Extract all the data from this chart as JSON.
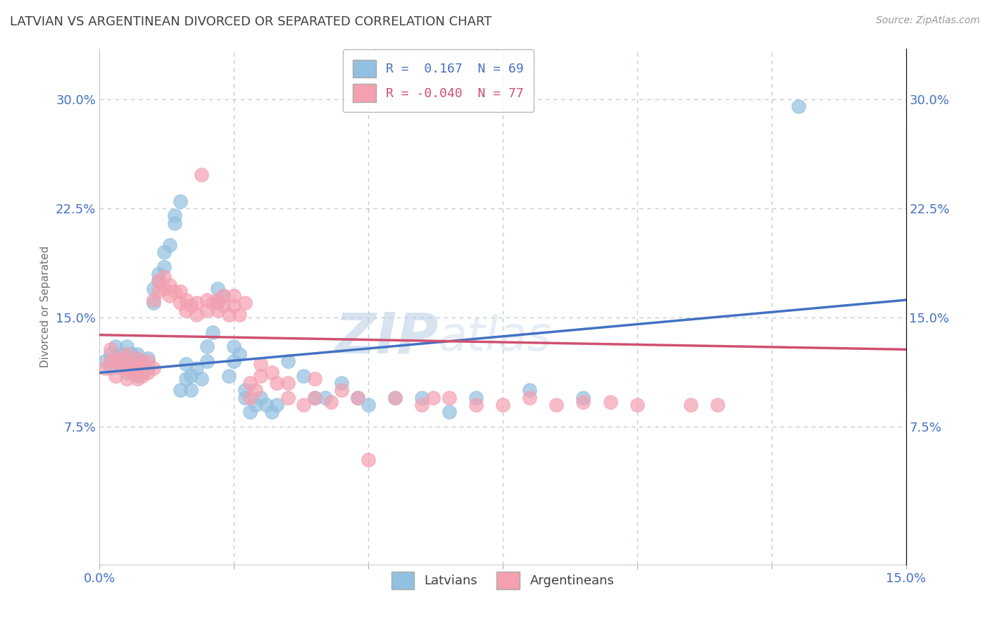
{
  "title": "LATVIAN VS ARGENTINEAN DIVORCED OR SEPARATED CORRELATION CHART",
  "source_text": "Source: ZipAtlas.com",
  "ylabel": "Divorced or Separated",
  "xlabel": "",
  "xlim": [
    0.0,
    0.15
  ],
  "ylim": [
    -0.02,
    0.335
  ],
  "xticks": [
    0.0,
    0.025,
    0.05,
    0.075,
    0.1,
    0.125,
    0.15
  ],
  "xticklabels": [
    "0.0%",
    "",
    "",
    "",
    "",
    "",
    "15.0%"
  ],
  "yticks": [
    0.075,
    0.15,
    0.225,
    0.3
  ],
  "yticklabels": [
    "7.5%",
    "15.0%",
    "22.5%",
    "30.0%"
  ],
  "latvian_color": "#92c0e0",
  "argentinean_color": "#f4a0b0",
  "latvian_line_color": "#4472c4",
  "argentinean_line_color": "#d05070",
  "R_latvian": 0.167,
  "N_latvian": 69,
  "R_argentinean": -0.04,
  "N_argentinean": 77,
  "watermark_zip": "ZIP",
  "watermark_atlas": "atlas",
  "background_color": "#ffffff",
  "grid_color": "#b8c8d8",
  "title_color": "#404040",
  "axis_label_color": "#4472c4",
  "latvian_points": [
    [
      0.001,
      0.12
    ],
    [
      0.002,
      0.115
    ],
    [
      0.002,
      0.125
    ],
    [
      0.003,
      0.12
    ],
    [
      0.003,
      0.13
    ],
    [
      0.004,
      0.118
    ],
    [
      0.004,
      0.125
    ],
    [
      0.005,
      0.112
    ],
    [
      0.005,
      0.12
    ],
    [
      0.005,
      0.13
    ],
    [
      0.006,
      0.115
    ],
    [
      0.006,
      0.12
    ],
    [
      0.006,
      0.125
    ],
    [
      0.007,
      0.11
    ],
    [
      0.007,
      0.118
    ],
    [
      0.007,
      0.125
    ],
    [
      0.008,
      0.112
    ],
    [
      0.008,
      0.12
    ],
    [
      0.009,
      0.115
    ],
    [
      0.009,
      0.122
    ],
    [
      0.01,
      0.16
    ],
    [
      0.01,
      0.17
    ],
    [
      0.011,
      0.175
    ],
    [
      0.011,
      0.18
    ],
    [
      0.012,
      0.185
    ],
    [
      0.012,
      0.195
    ],
    [
      0.013,
      0.2
    ],
    [
      0.014,
      0.215
    ],
    [
      0.014,
      0.22
    ],
    [
      0.015,
      0.23
    ],
    [
      0.015,
      0.1
    ],
    [
      0.016,
      0.108
    ],
    [
      0.016,
      0.118
    ],
    [
      0.017,
      0.1
    ],
    [
      0.017,
      0.11
    ],
    [
      0.018,
      0.115
    ],
    [
      0.019,
      0.108
    ],
    [
      0.02,
      0.12
    ],
    [
      0.02,
      0.13
    ],
    [
      0.021,
      0.14
    ],
    [
      0.022,
      0.16
    ],
    [
      0.022,
      0.17
    ],
    [
      0.023,
      0.165
    ],
    [
      0.024,
      0.11
    ],
    [
      0.025,
      0.12
    ],
    [
      0.025,
      0.13
    ],
    [
      0.026,
      0.125
    ],
    [
      0.027,
      0.095
    ],
    [
      0.027,
      0.1
    ],
    [
      0.028,
      0.085
    ],
    [
      0.029,
      0.09
    ],
    [
      0.03,
      0.095
    ],
    [
      0.031,
      0.09
    ],
    [
      0.032,
      0.085
    ],
    [
      0.033,
      0.09
    ],
    [
      0.035,
      0.12
    ],
    [
      0.038,
      0.11
    ],
    [
      0.04,
      0.095
    ],
    [
      0.042,
      0.095
    ],
    [
      0.045,
      0.105
    ],
    [
      0.048,
      0.095
    ],
    [
      0.05,
      0.09
    ],
    [
      0.055,
      0.095
    ],
    [
      0.06,
      0.095
    ],
    [
      0.065,
      0.085
    ],
    [
      0.07,
      0.095
    ],
    [
      0.08,
      0.1
    ],
    [
      0.09,
      0.095
    ],
    [
      0.13,
      0.295
    ]
  ],
  "argentinean_points": [
    [
      0.001,
      0.115
    ],
    [
      0.002,
      0.12
    ],
    [
      0.002,
      0.128
    ],
    [
      0.003,
      0.11
    ],
    [
      0.003,
      0.12
    ],
    [
      0.004,
      0.115
    ],
    [
      0.004,
      0.122
    ],
    [
      0.005,
      0.108
    ],
    [
      0.005,
      0.115
    ],
    [
      0.005,
      0.125
    ],
    [
      0.006,
      0.112
    ],
    [
      0.006,
      0.118
    ],
    [
      0.007,
      0.108
    ],
    [
      0.007,
      0.115
    ],
    [
      0.007,
      0.122
    ],
    [
      0.008,
      0.11
    ],
    [
      0.008,
      0.118
    ],
    [
      0.009,
      0.112
    ],
    [
      0.009,
      0.12
    ],
    [
      0.01,
      0.115
    ],
    [
      0.01,
      0.162
    ],
    [
      0.011,
      0.168
    ],
    [
      0.011,
      0.175
    ],
    [
      0.012,
      0.17
    ],
    [
      0.012,
      0.178
    ],
    [
      0.013,
      0.165
    ],
    [
      0.013,
      0.172
    ],
    [
      0.014,
      0.168
    ],
    [
      0.015,
      0.16
    ],
    [
      0.015,
      0.168
    ],
    [
      0.016,
      0.155
    ],
    [
      0.016,
      0.162
    ],
    [
      0.017,
      0.158
    ],
    [
      0.018,
      0.152
    ],
    [
      0.018,
      0.16
    ],
    [
      0.019,
      0.248
    ],
    [
      0.02,
      0.155
    ],
    [
      0.02,
      0.162
    ],
    [
      0.021,
      0.16
    ],
    [
      0.022,
      0.155
    ],
    [
      0.022,
      0.162
    ],
    [
      0.023,
      0.158
    ],
    [
      0.023,
      0.165
    ],
    [
      0.024,
      0.152
    ],
    [
      0.025,
      0.158
    ],
    [
      0.025,
      0.165
    ],
    [
      0.026,
      0.152
    ],
    [
      0.027,
      0.16
    ],
    [
      0.028,
      0.095
    ],
    [
      0.028,
      0.105
    ],
    [
      0.029,
      0.1
    ],
    [
      0.03,
      0.11
    ],
    [
      0.03,
      0.118
    ],
    [
      0.032,
      0.112
    ],
    [
      0.033,
      0.105
    ],
    [
      0.035,
      0.095
    ],
    [
      0.035,
      0.105
    ],
    [
      0.038,
      0.09
    ],
    [
      0.04,
      0.095
    ],
    [
      0.04,
      0.108
    ],
    [
      0.043,
      0.092
    ],
    [
      0.045,
      0.1
    ],
    [
      0.048,
      0.095
    ],
    [
      0.05,
      0.052
    ],
    [
      0.055,
      0.095
    ],
    [
      0.06,
      0.09
    ],
    [
      0.062,
      0.095
    ],
    [
      0.065,
      0.095
    ],
    [
      0.07,
      0.09
    ],
    [
      0.075,
      0.09
    ],
    [
      0.08,
      0.095
    ],
    [
      0.085,
      0.09
    ],
    [
      0.09,
      0.092
    ],
    [
      0.095,
      0.092
    ],
    [
      0.1,
      0.09
    ],
    [
      0.11,
      0.09
    ],
    [
      0.115,
      0.09
    ]
  ],
  "lat_line_x": [
    0.0,
    0.15
  ],
  "lat_line_y": [
    0.112,
    0.162
  ],
  "arg_line_x": [
    0.0,
    0.15
  ],
  "arg_line_y": [
    0.138,
    0.128
  ]
}
